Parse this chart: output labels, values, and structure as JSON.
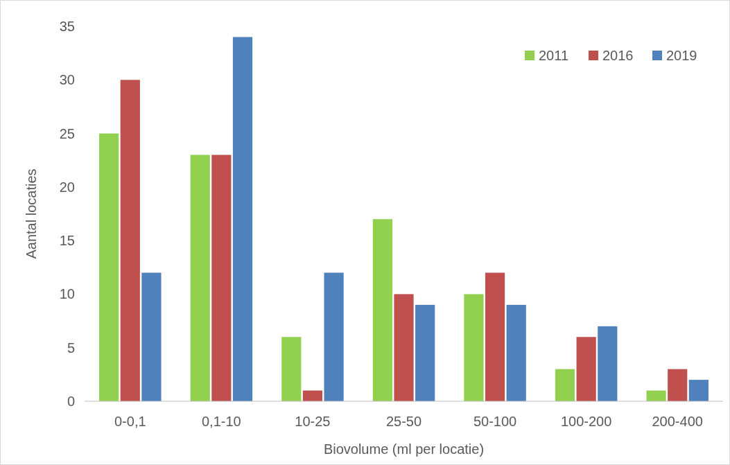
{
  "chart_data": {
    "type": "bar",
    "xlabel": "Biovolume (ml per locatie)",
    "ylabel": "Aantal locaties",
    "categories": [
      "0-0,1",
      "0,1-10",
      "10-25",
      "25-50",
      "50-100",
      "100-200",
      "200-400"
    ],
    "series": [
      {
        "name": "2011",
        "color": "#92d050",
        "values": [
          25,
          23,
          6,
          17,
          10,
          3,
          1
        ]
      },
      {
        "name": "2016",
        "color": "#c0504d",
        "values": [
          30,
          23,
          1,
          10,
          12,
          6,
          3
        ]
      },
      {
        "name": "2019",
        "color": "#4f81bd",
        "values": [
          12,
          34,
          12,
          9,
          9,
          7,
          2
        ]
      }
    ],
    "ylim": [
      0,
      35
    ],
    "yticks": [
      0,
      5,
      10,
      15,
      20,
      25,
      30,
      35
    ],
    "grid": false,
    "legend": "top right"
  }
}
